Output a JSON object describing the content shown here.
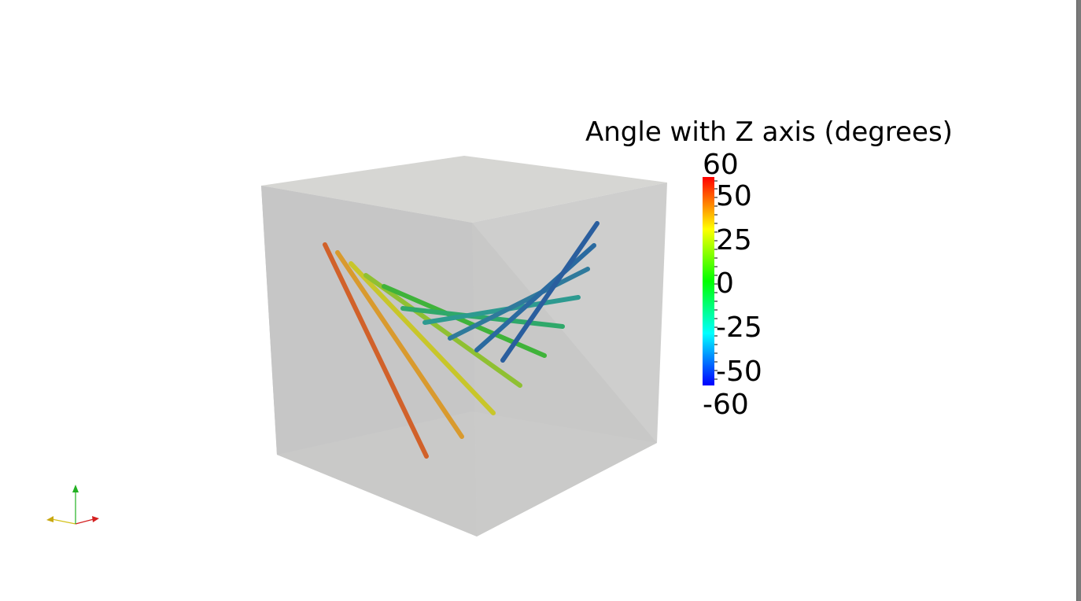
{
  "scalar_bar": {
    "title": "Angle with Z axis (degrees)",
    "range_max_label": "60",
    "range_min_label": "-60",
    "range": [
      -60,
      60
    ],
    "ticks": [
      {
        "label": "50",
        "value": 50
      },
      {
        "label": "25",
        "value": 25
      },
      {
        "label": "0",
        "value": 0
      },
      {
        "label": "-25",
        "value": -25
      },
      {
        "label": "-50",
        "value": -50
      }
    ],
    "colormap": [
      "#0000ff",
      "#00ffff",
      "#00ff00",
      "#ffff00",
      "#ff0000"
    ]
  },
  "tubes": [
    {
      "angle": 56,
      "color": "#d1612a"
    },
    {
      "angle": 44,
      "color": "#d99a2e"
    },
    {
      "angle": 32,
      "color": "#c8c62a"
    },
    {
      "angle": 18,
      "color": "#8fc032"
    },
    {
      "angle": 5,
      "color": "#3fb33a"
    },
    {
      "angle": -10,
      "color": "#2fa86a"
    },
    {
      "angle": -25,
      "color": "#2d9a90"
    },
    {
      "angle": -38,
      "color": "#2f7a9c"
    },
    {
      "angle": -50,
      "color": "#2a5e9e"
    }
  ],
  "orientation_axes": {
    "x_color": "#d42020",
    "y_color": "#22b022",
    "z_color": "#d4c21c"
  }
}
